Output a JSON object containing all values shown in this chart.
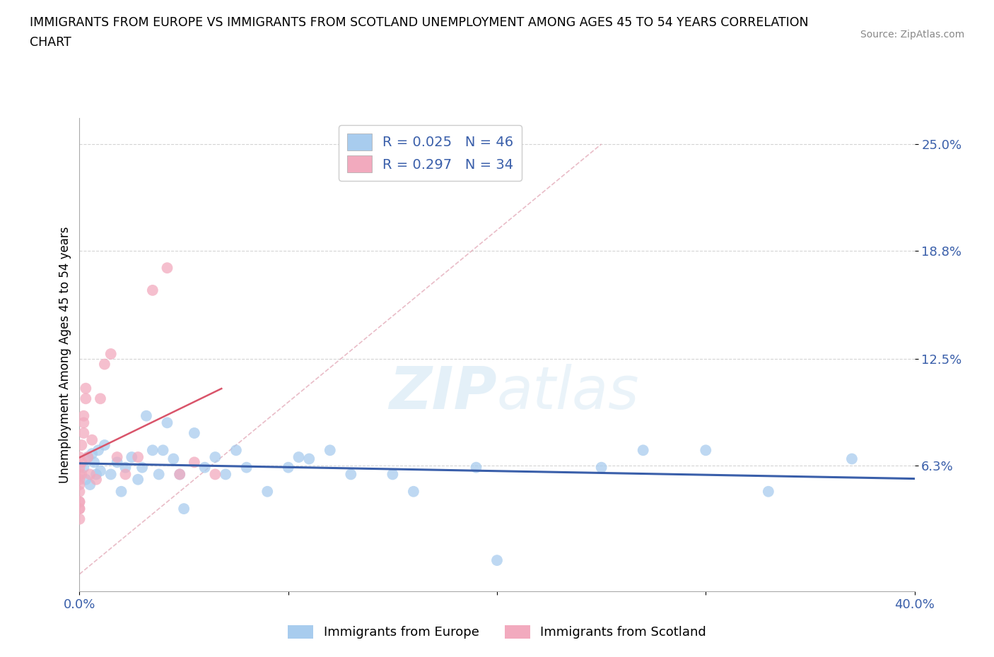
{
  "title_line1": "IMMIGRANTS FROM EUROPE VS IMMIGRANTS FROM SCOTLAND UNEMPLOYMENT AMONG AGES 45 TO 54 YEARS CORRELATION",
  "title_line2": "CHART",
  "source": "Source: ZipAtlas.com",
  "ylabel": "Unemployment Among Ages 45 to 54 years",
  "xlim": [
    0.0,
    0.4
  ],
  "ylim": [
    -0.01,
    0.265
  ],
  "xticks": [
    0.0,
    0.1,
    0.2,
    0.3,
    0.4
  ],
  "xticklabels": [
    "0.0%",
    "",
    "",
    "",
    "40.0%"
  ],
  "ytick_positions": [
    0.063,
    0.125,
    0.188,
    0.25
  ],
  "ytick_labels": [
    "6.3%",
    "12.5%",
    "18.8%",
    "25.0%"
  ],
  "R_europe": 0.025,
  "N_europe": 46,
  "R_scotland": 0.297,
  "N_scotland": 34,
  "color_europe": "#a8ccee",
  "color_scotland": "#f2aabe",
  "color_europe_line": "#3a5faa",
  "color_scotland_line": "#d9546a",
  "legend_text_color": "#3a5faa",
  "europe_x": [
    0.002,
    0.003,
    0.004,
    0.005,
    0.006,
    0.007,
    0.008,
    0.009,
    0.01,
    0.012,
    0.015,
    0.018,
    0.02,
    0.022,
    0.025,
    0.028,
    0.03,
    0.032,
    0.035,
    0.038,
    0.04,
    0.042,
    0.045,
    0.048,
    0.05,
    0.055,
    0.06,
    0.065,
    0.07,
    0.075,
    0.08,
    0.09,
    0.1,
    0.105,
    0.11,
    0.12,
    0.13,
    0.15,
    0.16,
    0.19,
    0.2,
    0.25,
    0.27,
    0.3,
    0.33,
    0.37
  ],
  "europe_y": [
    0.062,
    0.055,
    0.068,
    0.052,
    0.07,
    0.065,
    0.058,
    0.072,
    0.06,
    0.075,
    0.058,
    0.065,
    0.048,
    0.062,
    0.068,
    0.055,
    0.062,
    0.092,
    0.072,
    0.058,
    0.072,
    0.088,
    0.067,
    0.058,
    0.038,
    0.082,
    0.062,
    0.068,
    0.058,
    0.072,
    0.062,
    0.048,
    0.062,
    0.068,
    0.067,
    0.072,
    0.058,
    0.058,
    0.048,
    0.062,
    0.008,
    0.062,
    0.072,
    0.072,
    0.048,
    0.067
  ],
  "scotland_x": [
    0.0,
    0.0,
    0.0,
    0.0,
    0.0,
    0.0,
    0.0,
    0.0,
    0.0,
    0.0,
    0.0,
    0.001,
    0.001,
    0.001,
    0.002,
    0.002,
    0.002,
    0.003,
    0.003,
    0.004,
    0.005,
    0.006,
    0.008,
    0.01,
    0.012,
    0.015,
    0.018,
    0.022,
    0.028,
    0.035,
    0.042,
    0.048,
    0.055,
    0.065
  ],
  "scotland_y": [
    0.038,
    0.042,
    0.048,
    0.052,
    0.058,
    0.062,
    0.068,
    0.038,
    0.032,
    0.042,
    0.055,
    0.058,
    0.065,
    0.075,
    0.082,
    0.088,
    0.092,
    0.102,
    0.108,
    0.068,
    0.058,
    0.078,
    0.055,
    0.102,
    0.122,
    0.128,
    0.068,
    0.058,
    0.068,
    0.165,
    0.178,
    0.058,
    0.065,
    0.058
  ],
  "background_color": "#ffffff",
  "grid_color": "#d0d0d0"
}
